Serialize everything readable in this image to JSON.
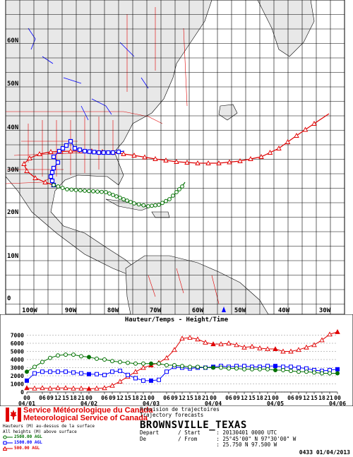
{
  "map": {
    "lat_labels": [
      "60N",
      "50N",
      "40N",
      "30N",
      "20N",
      "10N",
      "0"
    ],
    "lon_labels": [
      "100W",
      "90W",
      "80W",
      "70W",
      "60W",
      "50W",
      "40W",
      "30W"
    ],
    "colors": {
      "ocean": "#ffffff",
      "land": "#e8e8e8",
      "grid": "#000000",
      "borders": "#e00000",
      "lakes": "#0000ff",
      "coast": "#000000"
    }
  },
  "chart_data": {
    "type": "line",
    "title": "Hauteur/Temps - Height/Time",
    "ylim": [
      0,
      8000
    ],
    "yticks": [
      0,
      1000,
      2000,
      3000,
      4000,
      5000,
      6000,
      7000
    ],
    "hours_per_day": 24,
    "x_tick_hours": [
      "00",
      "06",
      "09",
      "12",
      "15",
      "18",
      "21"
    ],
    "x_days": [
      "04/01",
      "04/02",
      "04/03",
      "04/04",
      "04/05",
      "04/06"
    ],
    "x_day_first_labels": [
      "00",
      "00",
      "00",
      "00",
      "00",
      "00"
    ],
    "x_range_hours": [
      0,
      120
    ],
    "series": [
      {
        "name": "500.00 AGL",
        "color": "#e00000",
        "marker": "triangle",
        "x": [
          0,
          3,
          6,
          9,
          12,
          15,
          18,
          21,
          24,
          27,
          30,
          33,
          36,
          39,
          42,
          45,
          48,
          51,
          54,
          57,
          60,
          63,
          66,
          69,
          72,
          75,
          78,
          81,
          84,
          87,
          90,
          93,
          96,
          99,
          102,
          105,
          108,
          111,
          114,
          117,
          120
        ],
        "values": [
          500,
          450,
          500,
          450,
          500,
          500,
          450,
          450,
          400,
          450,
          500,
          800,
          1300,
          1900,
          2500,
          3000,
          3300,
          3600,
          4200,
          5200,
          6600,
          6700,
          6500,
          6100,
          5900,
          5900,
          6000,
          5800,
          5500,
          5600,
          5400,
          5300,
          5300,
          5000,
          5000,
          5200,
          5500,
          5800,
          6400,
          7100,
          7400
        ]
      },
      {
        "name": "1500.00 AGL",
        "color": "#0000ff",
        "marker": "square",
        "x": [
          0,
          3,
          6,
          9,
          12,
          15,
          18,
          21,
          24,
          27,
          30,
          33,
          36,
          39,
          42,
          45,
          48,
          51,
          54,
          57,
          60,
          63,
          66,
          69,
          72,
          75,
          78,
          81,
          84,
          87,
          90,
          93,
          96,
          99,
          102,
          105,
          108,
          111,
          114,
          117,
          120
        ],
        "values": [
          1400,
          2300,
          2500,
          2500,
          2500,
          2500,
          2400,
          2300,
          2200,
          2200,
          2100,
          2500,
          2600,
          2100,
          1700,
          1400,
          1400,
          1500,
          2500,
          3100,
          3000,
          2900,
          3000,
          3000,
          3100,
          3200,
          3100,
          3200,
          3200,
          3100,
          3100,
          3200,
          3200,
          3100,
          3100,
          3000,
          2900,
          2700,
          2600,
          2700,
          2800
        ]
      },
      {
        "name": "2500.00 AGL",
        "color": "#007000",
        "marker": "circle",
        "x": [
          0,
          3,
          6,
          9,
          12,
          15,
          18,
          21,
          24,
          27,
          30,
          33,
          36,
          39,
          42,
          45,
          48,
          51,
          54,
          57,
          60,
          63,
          66,
          69,
          72,
          75,
          78,
          81,
          84,
          87,
          90,
          93,
          96,
          99,
          102,
          105,
          108,
          111,
          114,
          117,
          120
        ],
        "values": [
          2500,
          3100,
          3700,
          4200,
          4500,
          4600,
          4600,
          4400,
          4300,
          4100,
          4000,
          3800,
          3700,
          3600,
          3500,
          3500,
          3500,
          3500,
          3300,
          3300,
          3200,
          3100,
          3100,
          3000,
          3000,
          3000,
          2900,
          2900,
          2800,
          2800,
          2800,
          2800,
          2700,
          2700,
          2600,
          2500,
          2500,
          2400,
          2300,
          2300,
          2300
        ]
      }
    ]
  },
  "footer": {
    "agency_fr": "Service Météorologique du Canada",
    "agency_en": "Meteorological Service of Canada",
    "legend_title_fr": "Hauteurs (M) au-dessus de la surface",
    "legend_title_en": "All heights (M) above surface",
    "legend": [
      {
        "label": "2500.00 AGL",
        "color": "#007000",
        "marker": "circle"
      },
      {
        "label": "1500.00 AGL",
        "color": "#0000ff",
        "marker": "square"
      },
      {
        "label": "500.00 AGL",
        "color": "#e00000",
        "marker": "triangle"
      }
    ],
    "forecast_fr": "Prevision de trajectoires",
    "forecast_en": "Trajectory forecasts",
    "station": "BROWNSVILLE_TEXAS",
    "depart_line": "Depart      / Start     : 20130401 0000 UTC",
    "from_line": "De          / From      : 25°45'00\" N 97°30'00\" W",
    "coord_line": "                        : 25.750 N 97.500 W",
    "stamp": "0433 01/04/2013"
  }
}
